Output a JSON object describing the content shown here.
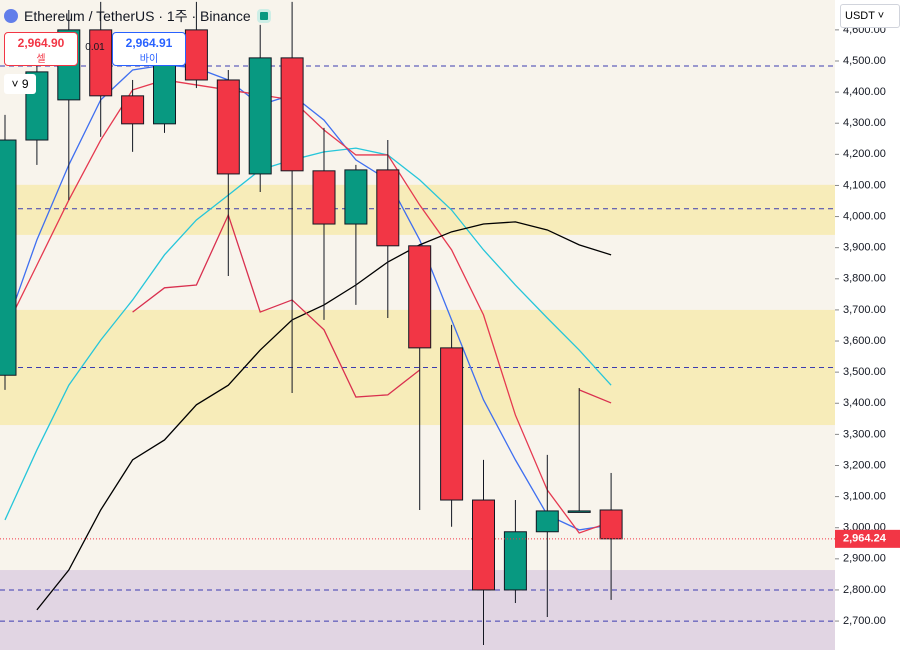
{
  "header": {
    "title": "Ethereum / TetherUS · 1주 · Binance",
    "sell_price": "2,964.90",
    "sell_label": "셀",
    "spread": "0.01",
    "buy_price": "2,964.91",
    "buy_label": "바이",
    "indicator_count": "9",
    "currency": "USDT"
  },
  "chart_data": {
    "type": "candlestick",
    "ylim": [
      2607,
      4696
    ],
    "yticks": [
      {
        "value": 4600,
        "label": "4,600.00"
      },
      {
        "value": 4500,
        "label": "4,500.00"
      },
      {
        "value": 4400,
        "label": "4,400.00"
      },
      {
        "value": 4300,
        "label": "4,300.00"
      },
      {
        "value": 4200,
        "label": "4,200.00"
      },
      {
        "value": 4100,
        "label": "4,100.00"
      },
      {
        "value": 4000,
        "label": "4,000.00"
      },
      {
        "value": 3900,
        "label": "3,900.00"
      },
      {
        "value": 3800,
        "label": "3,800.00"
      },
      {
        "value": 3700,
        "label": "3,700.00"
      },
      {
        "value": 3600,
        "label": "3,600.00"
      },
      {
        "value": 3500,
        "label": "3,500.00"
      },
      {
        "value": 3400,
        "label": "3,400.00"
      },
      {
        "value": 3300,
        "label": "3,300.00"
      },
      {
        "value": 3200,
        "label": "3,200.00"
      },
      {
        "value": 3100,
        "label": "3,100.00"
      },
      {
        "value": 3000,
        "label": "3,000.00"
      },
      {
        "value": 2900,
        "label": "2,900.00"
      },
      {
        "value": 2800,
        "label": "2,800.00"
      },
      {
        "value": 2700,
        "label": "2,700.00"
      }
    ],
    "open": [
      3490,
      4246,
      4375,
      4600,
      4388,
      4298,
      4600,
      4439,
      4137,
      4510,
      4147,
      3976,
      4150,
      3906,
      3578,
      3089,
      2800,
      2987,
      3050,
      3057
    ],
    "high": [
      4327,
      4567,
      4664,
      4690,
      4439,
      4567,
      4690,
      4471,
      4616,
      4690,
      4285,
      4166,
      4246,
      3912,
      3652,
      3218,
      3089,
      3234,
      3449,
      3176
    ],
    "low": [
      3443,
      4166,
      4053,
      4256,
      4208,
      4269,
      4413,
      3809,
      4079,
      3433,
      3668,
      3716,
      3674,
      3057,
      3003,
      2623,
      2758,
      2713,
      3050,
      2768
    ],
    "close": [
      4246,
      4465,
      4600,
      4388,
      4298,
      4503,
      4439,
      4137,
      4510,
      4147,
      3976,
      4150,
      3906,
      3578,
      3089,
      2800,
      2987,
      3054,
      3054,
      2964.24
    ],
    "up_color": "#089981",
    "down_color": "#f23645",
    "series": [
      {
        "color": "#26c6da",
        "values": [
          3025,
          3250,
          3458,
          3603,
          3732,
          3877,
          3989,
          4069,
          4150,
          4182,
          4208,
          4220,
          4198,
          4118,
          4021,
          3893,
          3780,
          3674,
          3571,
          3458
        ]
      },
      {
        "color": "#3f6ff0",
        "values": [
          3636,
          3925,
          4166,
          4375,
          4471,
          4487,
          4478,
          4439,
          4359,
          4391,
          4310,
          4182,
          4118,
          3925,
          3668,
          3411,
          3218,
          3041,
          2993,
          3009
        ]
      },
      {
        "color": "#e53950",
        "values": [
          3636,
          3844,
          4053,
          4246,
          4407,
          4439,
          4423,
          4407,
          4391,
          4375,
          4278,
          4198,
          4198,
          4037,
          3893,
          3684,
          3362,
          3121,
          2983,
          3019
        ]
      },
      {
        "color": "#000000",
        "values": [
          null,
          2736,
          2864,
          3057,
          3218,
          3282,
          3395,
          3458,
          3571,
          3668,
          3716,
          3780,
          3854,
          3909,
          3951,
          3976,
          3983,
          3957,
          3909,
          3877
        ]
      },
      {
        "color": "#d9304f",
        "values": [
          null,
          null,
          null,
          null,
          3693,
          3771,
          3780,
          4005,
          3693,
          3732,
          3636,
          3420,
          3427,
          3507,
          null,
          null,
          null,
          null,
          3443,
          3401
        ]
      }
    ],
    "zones": [
      {
        "lo": 3941,
        "hi": 4102,
        "color": "#f7e9a8"
      },
      {
        "lo": 3330,
        "hi": 3700,
        "color": "#f7e9a8"
      },
      {
        "lo": 2607,
        "hi": 2864,
        "color": "#d9cbe0"
      }
    ],
    "levels": [
      4484,
      4025,
      3515,
      2800,
      2700
    ],
    "last_price": {
      "value": 2964.24,
      "label": "2,964.24"
    }
  }
}
